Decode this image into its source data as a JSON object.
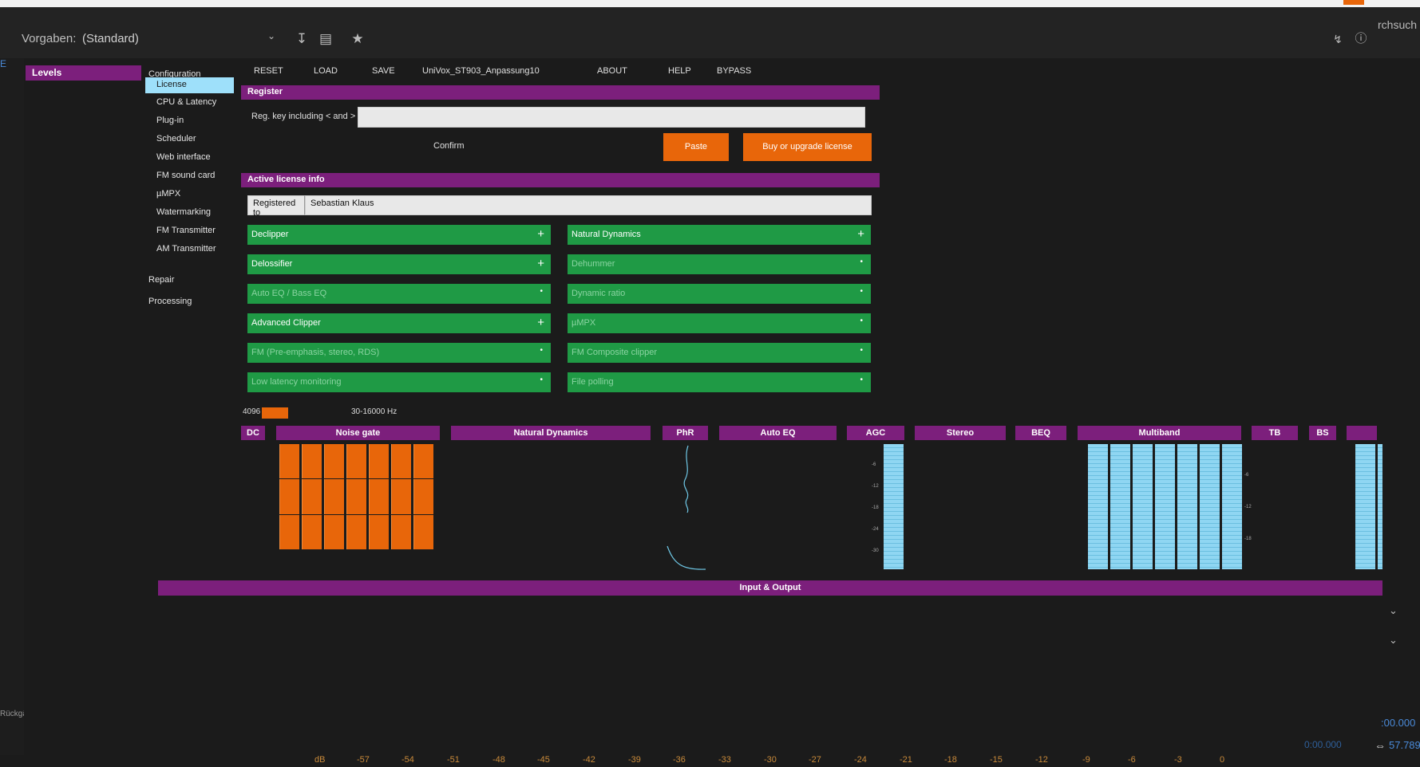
{
  "topbar": {
    "preset_label": "Vorgaben:",
    "preset_value": "(Standard)",
    "right_text": "rchsuch"
  },
  "sidebar": {
    "levels_label": "Levels"
  },
  "nav": {
    "configuration": "Configuration",
    "sub": [
      "License",
      "CPU & Latency",
      "Plug-in",
      "Scheduler",
      "Web interface",
      "FM sound card",
      "µMPX",
      "Watermarking",
      "FM Transmitter",
      "AM Transmitter"
    ],
    "repair": "Repair",
    "processing": "Processing"
  },
  "menu": {
    "reset": "RESET",
    "load": "LOAD",
    "save": "SAVE",
    "preset": "UniVox_ST903_Anpassung10",
    "about": "ABOUT",
    "help": "HELP",
    "bypass": "BYPASS"
  },
  "register": {
    "title": "Register",
    "key_label": "Reg. key including < and >",
    "key_value": "",
    "confirm": "Confirm",
    "paste": "Paste",
    "buy": "Buy or upgrade license"
  },
  "license": {
    "title": "Active license info",
    "registered_label": "Registered to",
    "registered_value": "Sebastian Klaus",
    "features_left": [
      {
        "label": "Declipper",
        "active": true
      },
      {
        "label": "Delossifier",
        "active": true
      },
      {
        "label": "Auto EQ / Bass EQ",
        "active": false
      },
      {
        "label": "Advanced Clipper",
        "active": true
      },
      {
        "label": "FM (Pre-emphasis, stereo, RDS)",
        "active": false
      },
      {
        "label": "Low latency monitoring",
        "active": false
      }
    ],
    "features_right": [
      {
        "label": "Natural Dynamics",
        "active": true
      },
      {
        "label": "Dehummer",
        "active": false
      },
      {
        "label": "Dynamic ratio",
        "active": false
      },
      {
        "label": "µMPX",
        "active": false
      },
      {
        "label": "FM Composite clipper",
        "active": false
      },
      {
        "label": "File polling",
        "active": false
      }
    ]
  },
  "status": {
    "samples": "4096",
    "range": "30-16000 Hz"
  },
  "modules": [
    "DC",
    "Noise gate",
    "Natural Dynamics",
    "PhR",
    "Auto EQ",
    "AGC",
    "Stereo",
    "BEQ",
    "Multiband",
    "TB",
    "BS",
    ""
  ],
  "io_label": "Input & Output",
  "scale": [
    "dB",
    "-57",
    "-54",
    "-51",
    "-48",
    "-45",
    "-42",
    "-39",
    "-36",
    "-33",
    "-30",
    "-27",
    "-24",
    "-21",
    "-18",
    "-15",
    "-12",
    "-9",
    "-6",
    "-3",
    "0"
  ],
  "timecodes": {
    "a": ":00.000",
    "b": "57.789",
    "c": "0:00.000"
  },
  "edge": {
    "undo": "Rückgängig"
  },
  "colors": {
    "purple": "#7c1f7c",
    "orange": "#e8660a",
    "green": "#1f9a45",
    "lightblue": "#8fd6f2"
  }
}
